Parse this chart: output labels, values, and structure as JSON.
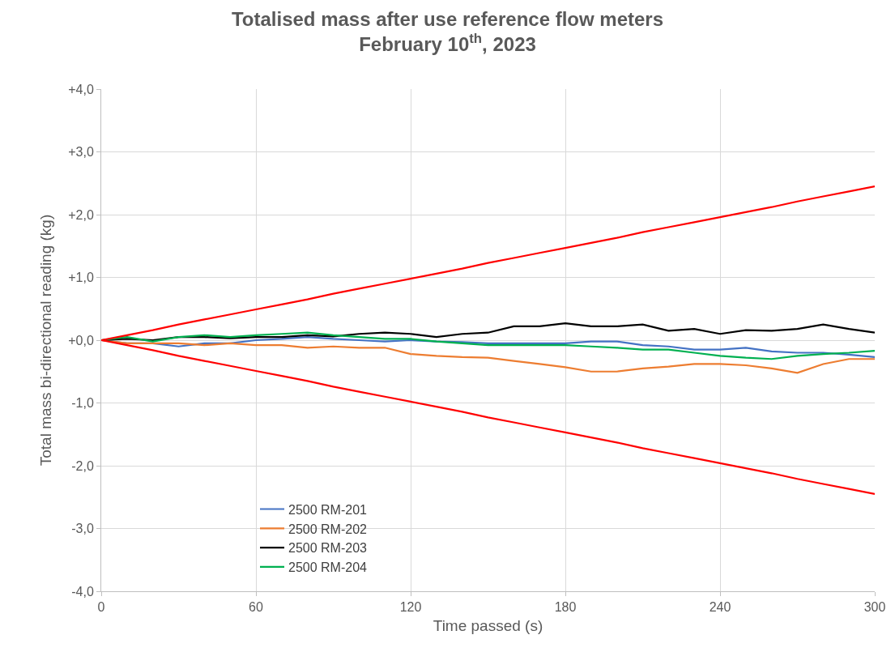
{
  "chart_data": {
    "type": "line",
    "title": "Totalised mass after use reference flow meters\nFebruary 10$^{th}$, 2023",
    "xlabel": "Time passed (s)",
    "ylabel": "Total mass bi-directional reading (kg)",
    "x": [
      0,
      10,
      20,
      30,
      40,
      50,
      60,
      70,
      80,
      90,
      100,
      110,
      120,
      130,
      140,
      150,
      160,
      170,
      180,
      190,
      200,
      210,
      220,
      230,
      240,
      250,
      260,
      270,
      280,
      290,
      300
    ],
    "series": [
      {
        "name": "2500 RM-201",
        "color": "#4472c4",
        "values": [
          0,
          -0.05,
          -0.05,
          -0.1,
          -0.05,
          -0.05,
          0.0,
          0.02,
          0.05,
          0.02,
          0.0,
          -0.02,
          0.0,
          -0.02,
          -0.03,
          -0.05,
          -0.05,
          -0.05,
          -0.05,
          -0.02,
          -0.02,
          -0.08,
          -0.1,
          -0.15,
          -0.15,
          -0.12,
          -0.18,
          -0.2,
          -0.2,
          -0.23,
          -0.27
        ]
      },
      {
        "name": "2500 RM-202",
        "color": "#ed7d31",
        "values": [
          0,
          -0.05,
          -0.05,
          -0.05,
          -0.08,
          -0.05,
          -0.08,
          -0.08,
          -0.12,
          -0.1,
          -0.12,
          -0.12,
          -0.22,
          -0.25,
          -0.27,
          -0.28,
          -0.33,
          -0.38,
          -0.43,
          -0.5,
          -0.5,
          -0.45,
          -0.42,
          -0.38,
          -0.38,
          -0.4,
          -0.45,
          -0.52,
          -0.38,
          -0.3,
          -0.3
        ]
      },
      {
        "name": "2500 RM-203",
        "color": "#000000",
        "values": [
          0,
          0.02,
          0.0,
          0.05,
          0.05,
          0.03,
          0.05,
          0.05,
          0.08,
          0.06,
          0.1,
          0.12,
          0.1,
          0.05,
          0.1,
          0.12,
          0.22,
          0.22,
          0.27,
          0.22,
          0.22,
          0.25,
          0.15,
          0.18,
          0.1,
          0.16,
          0.15,
          0.18,
          0.25,
          0.18,
          0.12
        ]
      },
      {
        "name": "2500 RM-204",
        "color": "#00b050",
        "values": [
          0,
          0.05,
          -0.02,
          0.05,
          0.08,
          0.05,
          0.08,
          0.1,
          0.12,
          0.08,
          0.05,
          0.02,
          0.02,
          -0.02,
          -0.05,
          -0.08,
          -0.08,
          -0.08,
          -0.08,
          -0.1,
          -0.12,
          -0.15,
          -0.15,
          -0.2,
          -0.25,
          -0.28,
          -0.3,
          -0.25,
          -0.22,
          -0.2,
          -0.17
        ]
      },
      {
        "color": "#ff0000",
        "values": [
          0,
          0.08,
          0.16,
          0.25,
          0.33,
          0.41,
          0.49,
          0.57,
          0.65,
          0.74,
          0.82,
          0.9,
          0.98,
          1.06,
          1.14,
          1.23,
          1.31,
          1.39,
          1.47,
          1.55,
          1.63,
          1.72,
          1.8,
          1.88,
          1.96,
          2.04,
          2.12,
          2.21,
          2.29,
          2.37,
          2.45
        ]
      },
      {
        "color": "#ff0000",
        "values": [
          0,
          -0.08,
          -0.16,
          -0.25,
          -0.33,
          -0.41,
          -0.49,
          -0.57,
          -0.65,
          -0.74,
          -0.82,
          -0.9,
          -0.98,
          -1.06,
          -1.14,
          -1.23,
          -1.31,
          -1.39,
          -1.47,
          -1.55,
          -1.63,
          -1.72,
          -1.8,
          -1.88,
          -1.96,
          -2.04,
          -2.12,
          -2.21,
          -2.29,
          -2.37,
          -2.45
        ]
      }
    ],
    "xlim": [
      0,
      300
    ],
    "xticks": [
      0,
      60,
      120,
      180,
      240,
      300
    ],
    "ylim": [
      -4,
      4
    ],
    "yticks": [
      {
        "value": -4,
        "label": "-4,0"
      },
      {
        "value": -3,
        "label": "-3,0"
      },
      {
        "value": -2,
        "label": "-2,0"
      },
      {
        "value": -1,
        "label": "-1,0"
      },
      {
        "value": 0,
        "label": "+0,0"
      },
      {
        "value": 1,
        "label": "+1,0"
      },
      {
        "value": 2,
        "label": "+2,0"
      },
      {
        "value": 3,
        "label": "+3,0"
      },
      {
        "value": 4,
        "label": "+4,0"
      }
    ],
    "grid": true,
    "legend": "bottom left",
    "marker": "none",
    "line_style": "solid"
  }
}
